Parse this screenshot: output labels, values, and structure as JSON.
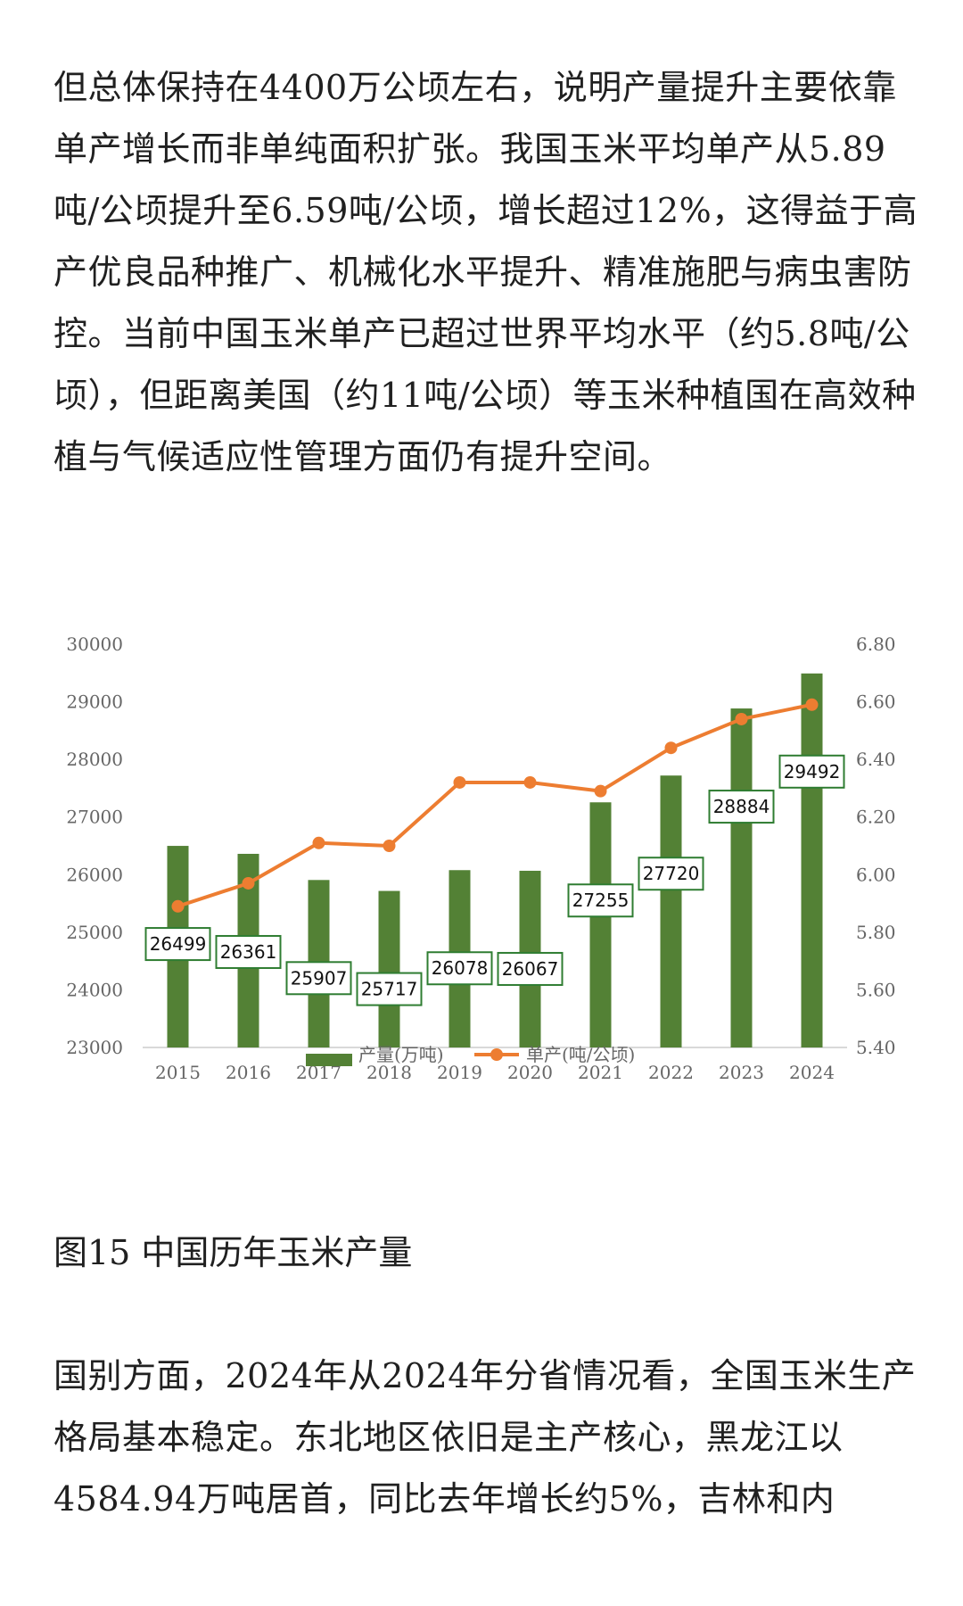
{
  "article": {
    "para_top": "但总体保持在4400万公顷左右，说明产量提升主要依靠单产增长而非单纯面积扩张。我国玉米平均单产从5.89吨/公顷提升至6.59吨/公顷，增长超过12%，这得益于高产优良品种推广、机械化水平提升、精准施肥与病虫害防控。当前中国玉米单产已超过世界平均水平（约5.8吨/公顷），但距离美国（约11吨/公顷）等玉米种植国在高效种植与气候适应性管理方面仍有提升空间。",
    "caption": "图15 中国历年玉米产量",
    "para_bottom": "国别方面，2024年从2024年分省情况看，全国玉米生产格局基本稳定。东北地区依旧是主产核心，黑龙江以4584.94万吨居首，同比去年增长约5%，吉林和内"
  },
  "chart_data": {
    "type": "bar+line",
    "title": "",
    "categories": [
      "2015",
      "2016",
      "2017",
      "2018",
      "2019",
      "2020",
      "2021",
      "2022",
      "2023",
      "2024"
    ],
    "series": [
      {
        "name": "产量(万吨)",
        "type": "bar",
        "axis": "left",
        "color": "#538135",
        "values": [
          26499,
          26361,
          25907,
          25717,
          26078,
          26067,
          27255,
          27720,
          28884,
          29492
        ]
      },
      {
        "name": "单产(吨/公顷)",
        "type": "line",
        "axis": "right",
        "color": "#ED7D31",
        "values": [
          5.89,
          5.97,
          6.11,
          6.1,
          6.32,
          6.32,
          6.29,
          6.44,
          6.54,
          6.59
        ]
      }
    ],
    "ylim_left": [
      23000,
      30000
    ],
    "yticks_left": [
      "23000",
      "24000",
      "25000",
      "26000",
      "27000",
      "28000",
      "29000",
      "30000"
    ],
    "ylim_right": [
      5.4,
      6.8
    ],
    "yticks_right": [
      "5.40",
      "5.60",
      "5.80",
      "6.00",
      "6.20",
      "6.40",
      "6.60",
      "6.80"
    ],
    "bar_data_labels": [
      "26499",
      "26361",
      "25907",
      "25717",
      "26078",
      "26067",
      "27255",
      "27720",
      "28884",
      "29492"
    ],
    "legend": {
      "position": "bottom",
      "entries": [
        "产量(万吨)",
        "单产(吨/公顷)"
      ]
    },
    "grid": false
  }
}
